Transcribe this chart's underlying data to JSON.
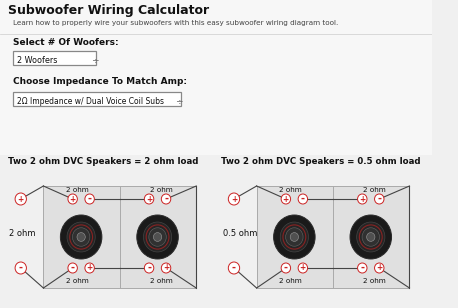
{
  "bg_color": "#f0f0f0",
  "title": "Subwoofer Wiring Calculator",
  "subtitle": "Learn how to properly wire your subwoofers with this easy subwoofer wiring diagram tool.",
  "select_label": "Select # Of Woofers:",
  "select_value": "2 Woofers",
  "impedance_label": "Choose Impedance To Match Amp:",
  "impedance_value": "2Ω Impedance w/ Dual Voice Coil Subs",
  "diagram1_title": "Two 2 ohm DVC Speakers = 2 ohm load",
  "diagram2_title": "Two 2 ohm DVC Speakers = 0.5 ohm load",
  "diagram1_load": "2 ohm",
  "diagram2_load": "0.5 ohm",
  "speaker_ohm": "2 ohm",
  "text_color": "#111111",
  "label_color": "#333333",
  "box_color": "#ffffff",
  "border_color": "#999999",
  "red_color": "#cc2222",
  "wire_color": "#444444",
  "diag_bg": "#e8e8e8"
}
